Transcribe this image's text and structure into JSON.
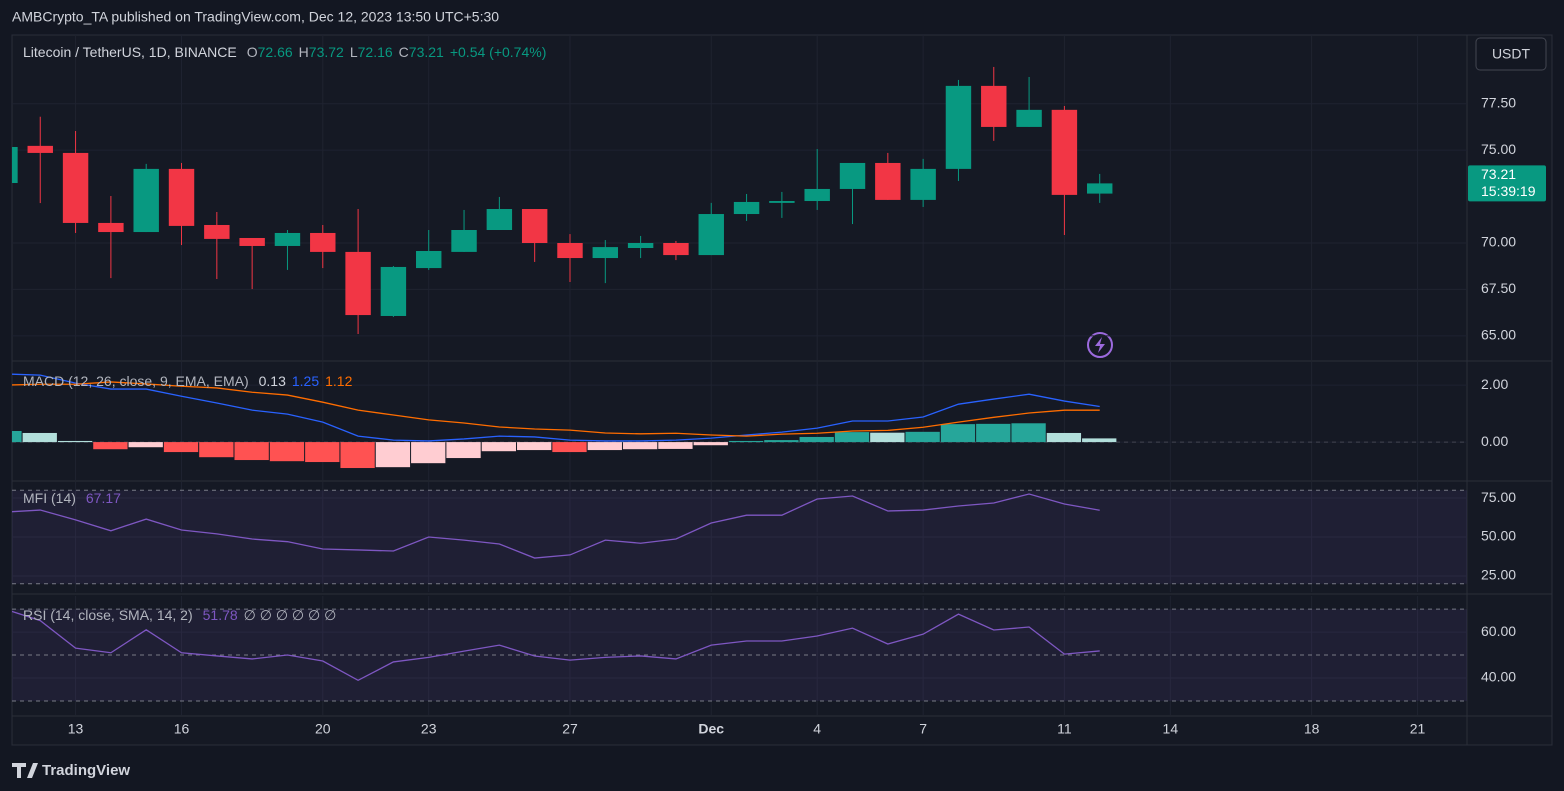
{
  "header": {
    "attribution": "AMBCrypto_TA published on TradingView.com, Dec 12, 2023 13:50 UTC+5:30",
    "brand": "TradingView",
    "currency": "USDT",
    "countdown": "15:39:19"
  },
  "chart_data": [
    {
      "type": "candlestick",
      "title": "Litecoin / TetherUS, 1D, BINANCE",
      "open_label": "O",
      "high_label": "H",
      "low_label": "L",
      "close_label": "C",
      "change_label": "+0.54 (+0.74%)",
      "x": [
        0,
        1,
        2,
        3,
        4,
        5,
        6,
        7,
        8,
        9,
        10,
        11,
        12,
        13,
        14,
        15,
        16,
        17,
        18,
        19,
        20,
        21,
        22,
        23,
        24,
        25,
        26,
        27,
        28,
        29,
        30,
        31
      ],
      "open": [
        73.23,
        75.23,
        74.85,
        71.08,
        70.59,
        73.99,
        70.97,
        70.27,
        69.84,
        70.54,
        69.52,
        66.07,
        68.65,
        69.52,
        70.7,
        71.83,
        70.0,
        69.19,
        69.73,
        70.0,
        69.35,
        71.56,
        72.16,
        72.26,
        72.91,
        74.31,
        72.32,
        73.99,
        78.46,
        76.25,
        77.17,
        72.66
      ],
      "high": [
        75.2,
        76.8,
        76.03,
        72.53,
        74.26,
        74.31,
        71.67,
        70.27,
        70.7,
        70.97,
        71.83,
        68.76,
        70.7,
        71.78,
        72.48,
        71.83,
        70.48,
        70.16,
        70.38,
        70.11,
        72.16,
        72.64,
        72.75,
        75.06,
        74.31,
        74.85,
        74.53,
        78.78,
        79.48,
        78.94,
        77.38,
        73.72
      ],
      "low": [
        73.2,
        72.15,
        70.54,
        68.11,
        70.59,
        69.89,
        68.06,
        67.52,
        68.55,
        68.65,
        65.1,
        66.02,
        68.55,
        69.52,
        70.7,
        68.98,
        67.9,
        67.84,
        69.19,
        69.08,
        69.35,
        71.19,
        71.35,
        71.78,
        71.02,
        72.32,
        71.94,
        73.34,
        75.5,
        76.25,
        70.43,
        72.16
      ],
      "close": [
        75.17,
        74.85,
        71.08,
        70.59,
        73.99,
        70.92,
        70.22,
        69.84,
        70.54,
        69.52,
        66.12,
        68.71,
        69.57,
        70.7,
        71.83,
        70.0,
        69.19,
        69.78,
        70.0,
        69.35,
        71.56,
        72.21,
        72.26,
        72.91,
        74.31,
        72.32,
        73.99,
        78.46,
        76.25,
        77.17,
        72.59,
        73.21
      ],
      "up_color": "#089981",
      "down_color": "#f23645",
      "xlim": [
        0.2,
        41.4
      ],
      "xticks": [
        {
          "value": 2,
          "label": "13"
        },
        {
          "value": 5,
          "label": "16"
        },
        {
          "value": 9,
          "label": "20"
        },
        {
          "value": 12,
          "label": "23"
        },
        {
          "value": 16,
          "label": "27"
        },
        {
          "value": 20,
          "label": "Dec"
        },
        {
          "value": 23,
          "label": "4"
        },
        {
          "value": 26,
          "label": "7"
        },
        {
          "value": 30,
          "label": "11"
        },
        {
          "value": 33,
          "label": "14"
        },
        {
          "value": 37,
          "label": "18"
        },
        {
          "value": 40,
          "label": "21"
        }
      ],
      "ylim": [
        63.7,
        81.2
      ],
      "yticks": [
        {
          "value": 65,
          "label": "65.00"
        },
        {
          "value": 67.5,
          "label": "67.50"
        },
        {
          "value": 70,
          "label": "70.00"
        },
        {
          "value": 75,
          "label": "75.00"
        },
        {
          "value": 77.5,
          "label": "77.50"
        }
      ],
      "grid": true
    },
    {
      "type": "macd",
      "title": "MACD (12, 26, close, 9, EMA, EMA)",
      "histogram": {
        "values": [
          0.39,
          0.32,
          0.04,
          -0.25,
          -0.18,
          -0.35,
          -0.53,
          -0.63,
          -0.67,
          -0.7,
          -0.91,
          -0.88,
          -0.74,
          -0.56,
          -0.32,
          -0.28,
          -0.35,
          -0.28,
          -0.25,
          -0.24,
          -0.11,
          0.04,
          0.07,
          0.18,
          0.35,
          0.33,
          0.36,
          0.63,
          0.64,
          0.66,
          0.32,
          0.13
        ],
        "colors": [
          "#26a69a",
          "#b2dfdb",
          "#ffcdd2",
          "#ff5252"
        ]
      },
      "series": [
        {
          "color": "#2962ff",
          "values": [
            2.39,
            2.35,
            2.07,
            1.86,
            1.86,
            1.61,
            1.37,
            1.12,
            0.98,
            0.7,
            0.21,
            0.07,
            0.04,
            0.11,
            0.21,
            0.18,
            0.07,
            0.04,
            0.04,
            0.07,
            0.14,
            0.25,
            0.35,
            0.49,
            0.74,
            0.74,
            0.88,
            1.33,
            1.51,
            1.68,
            1.44,
            1.25
          ]
        },
        {
          "color": "#ff6d00",
          "values": [
            2.0,
            2.03,
            2.03,
            2.11,
            2.04,
            1.96,
            1.9,
            1.75,
            1.65,
            1.4,
            1.12,
            0.95,
            0.78,
            0.67,
            0.53,
            0.46,
            0.42,
            0.32,
            0.29,
            0.31,
            0.25,
            0.21,
            0.28,
            0.31,
            0.39,
            0.41,
            0.52,
            0.7,
            0.87,
            1.02,
            1.12,
            1.12
          ]
        }
      ],
      "ylim": [
        -1.33,
        2.81
      ],
      "yticks": [
        {
          "value": 0,
          "label": "0.00"
        },
        {
          "value": 2,
          "label": "2.00"
        }
      ]
    },
    {
      "type": "line",
      "title": "MFI (14)",
      "color": "#7e57c2",
      "values": [
        66,
        67.3,
        61,
        54,
        61.5,
        54.5,
        52,
        48.7,
        47,
        42.3,
        41.7,
        41,
        50,
        48,
        45.5,
        36.5,
        38.5,
        48,
        46,
        48.7,
        59,
        64,
        64,
        74.4,
        76.3,
        66.7,
        67.3,
        69.9,
        71.8,
        77.6,
        71.2,
        67.17
      ],
      "bands": [
        20,
        80
      ],
      "ylim": [
        14.7,
        85.3
      ],
      "yticks": [
        {
          "value": 25,
          "label": "25.00"
        },
        {
          "value": 50,
          "label": "50.00"
        },
        {
          "value": 75,
          "label": "75.00"
        }
      ]
    },
    {
      "type": "line",
      "title": "RSI (14, close, SMA, 14, 2)",
      "extra": "∅ ∅ ∅ ∅ ∅ ∅",
      "color": "#7e57c2",
      "values": [
        70,
        65,
        53,
        51,
        61,
        51,
        49.6,
        48.3,
        50,
        47.4,
        39,
        47,
        49,
        51.7,
        54.3,
        49.6,
        47.8,
        49,
        49.6,
        48.3,
        54.3,
        56.1,
        56.1,
        58.3,
        61.7,
        54.8,
        59.1,
        67.8,
        60.9,
        62.2,
        50.4,
        51.78
      ],
      "bands": [
        30,
        50,
        70
      ],
      "ylim": [
        23.9,
        75.7
      ],
      "yticks": [
        {
          "value": 40,
          "label": "40.00"
        },
        {
          "value": 60,
          "label": "60.00"
        }
      ]
    }
  ]
}
